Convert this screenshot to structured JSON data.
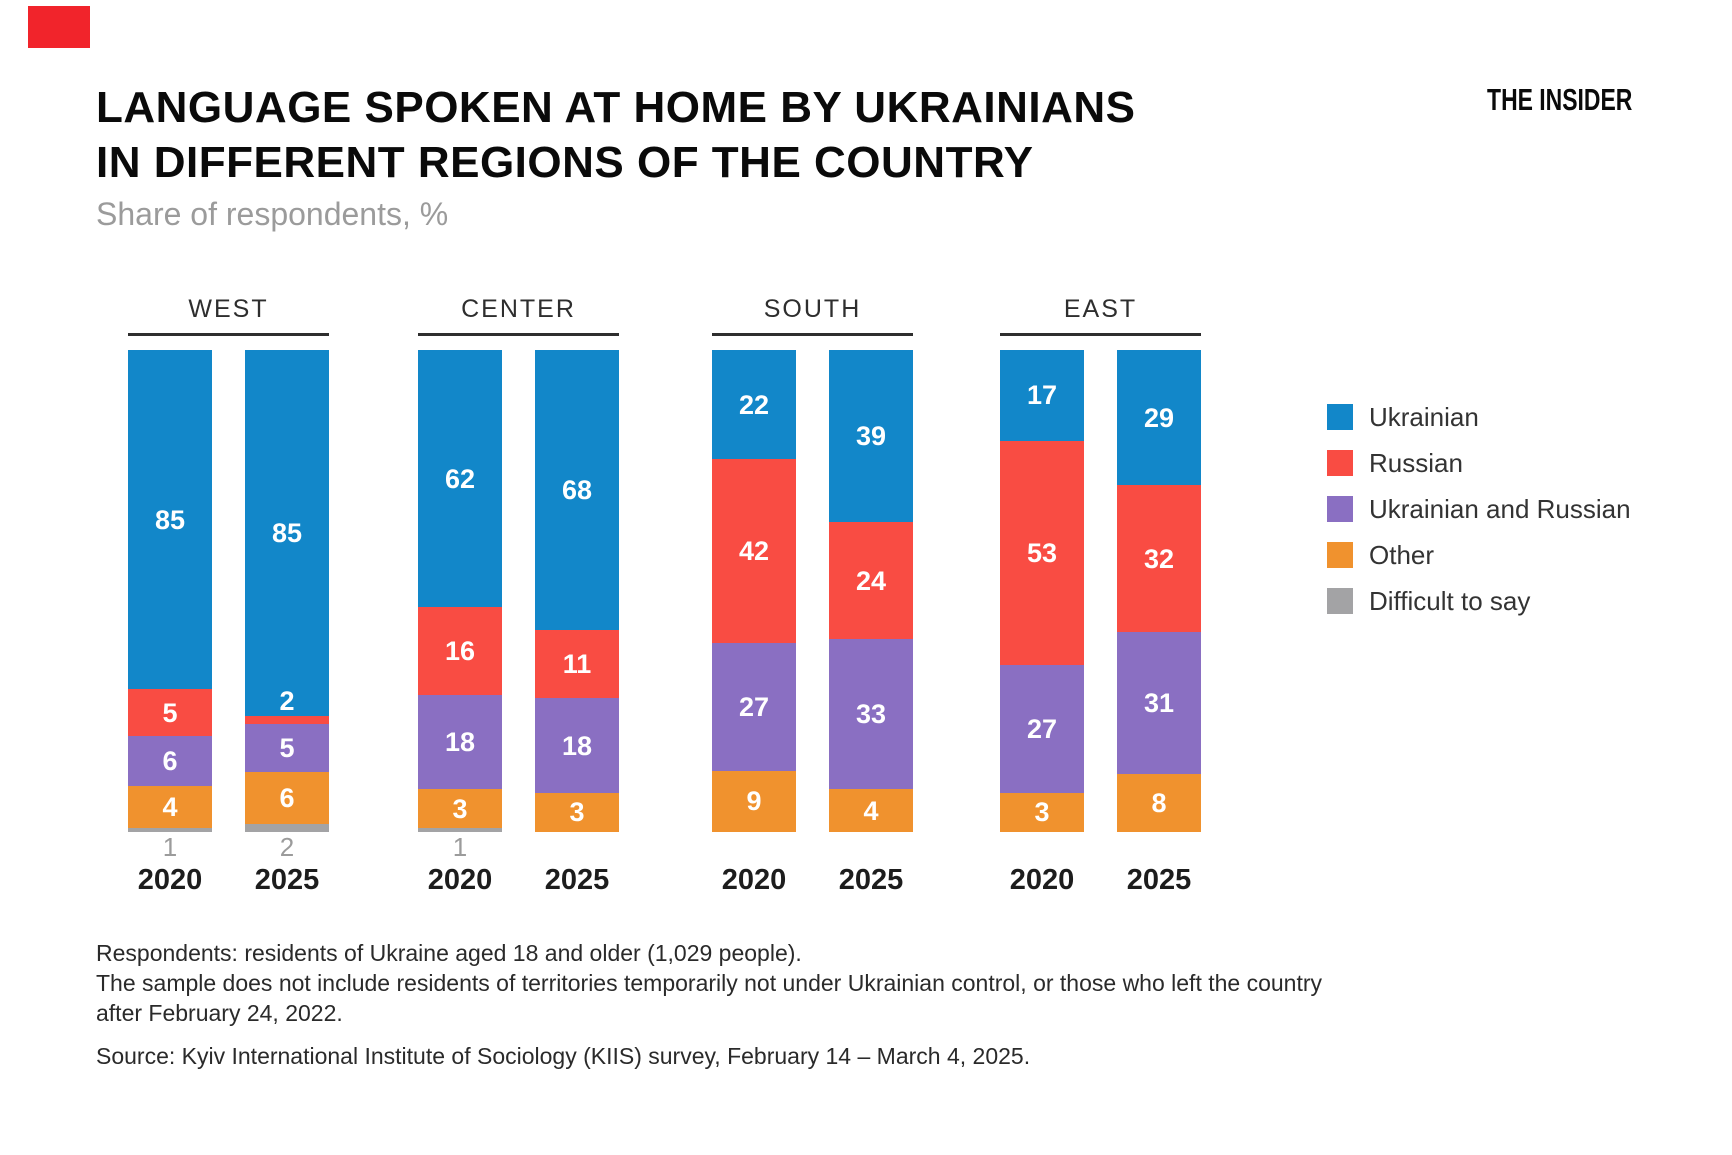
{
  "brand": {
    "logo_text": "THE INSIDER",
    "accent_color": "#f1242b"
  },
  "header": {
    "title_line1": "LANGUAGE SPOKEN AT HOME BY UKRAINIANS",
    "title_line2": "IN DIFFERENT REGIONS OF THE COUNTRY",
    "subtitle": "Share of respondents, %"
  },
  "legend": [
    {
      "label": "Ukrainian",
      "color": "#1287c9"
    },
    {
      "label": "Russian",
      "color": "#f94c43"
    },
    {
      "label": "Ukrainian and Russian",
      "color": "#8a6fc2"
    },
    {
      "label": "Other",
      "color": "#f0922e"
    },
    {
      "label": "Difficult to say",
      "color": "#a3a3a5"
    }
  ],
  "chart_data": {
    "type": "bar",
    "stacked": true,
    "unit": "%",
    "ylim": [
      0,
      100
    ],
    "series_names": [
      "Ukrainian",
      "Russian",
      "Ukrainian and Russian",
      "Other",
      "Difficult to say"
    ],
    "series_colors": [
      "#1287c9",
      "#f94c43",
      "#8a6fc2",
      "#f0922e",
      "#a3a3a5"
    ],
    "groups": [
      {
        "region": "WEST",
        "bars": [
          {
            "year": "2020",
            "values": [
              85,
              5,
              6,
              4,
              1
            ],
            "label_positions": [
              "in",
              "in",
              "in",
              "in",
              "below"
            ]
          },
          {
            "year": "2025",
            "values": [
              85,
              2,
              5,
              6,
              2
            ],
            "label_positions": [
              "in",
              "above",
              "in",
              "in",
              "below"
            ]
          }
        ]
      },
      {
        "region": "CENTER",
        "bars": [
          {
            "year": "2020",
            "values": [
              62,
              16,
              18,
              3,
              1
            ],
            "label_positions": [
              "in",
              "in",
              "in",
              "in",
              "below"
            ]
          },
          {
            "year": "2025",
            "values": [
              68,
              11,
              18,
              3,
              0
            ],
            "label_positions": [
              "in",
              "in",
              "in",
              "in",
              "none"
            ]
          }
        ]
      },
      {
        "region": "SOUTH",
        "bars": [
          {
            "year": "2020",
            "values": [
              22,
              42,
              27,
              9,
              0
            ],
            "label_positions": [
              "in",
              "in",
              "in",
              "in",
              "none"
            ]
          },
          {
            "year": "2025",
            "values": [
              39,
              24,
              33,
              4,
              0
            ],
            "label_positions": [
              "in",
              "in",
              "in",
              "in",
              "none"
            ]
          }
        ]
      },
      {
        "region": "EAST",
        "bars": [
          {
            "year": "2020",
            "values": [
              17,
              53,
              27,
              3,
              0
            ],
            "label_positions": [
              "in",
              "in",
              "in",
              "in",
              "none"
            ]
          },
          {
            "year": "2025",
            "values": [
              29,
              32,
              31,
              8,
              0
            ],
            "label_positions": [
              "in",
              "in",
              "in",
              "in",
              "none"
            ]
          }
        ]
      }
    ]
  },
  "footnotes": {
    "lines": [
      "Respondents: residents of Ukraine aged 18 and older (1,029 people).",
      "The sample does not include residents of territories temporarily not under Ukrainian control, or those who left the country",
      "after February 24, 2022."
    ],
    "source": "Source: Kyiv International Institute of Sociology (KIIS) survey, February 14 – March 4, 2025."
  }
}
